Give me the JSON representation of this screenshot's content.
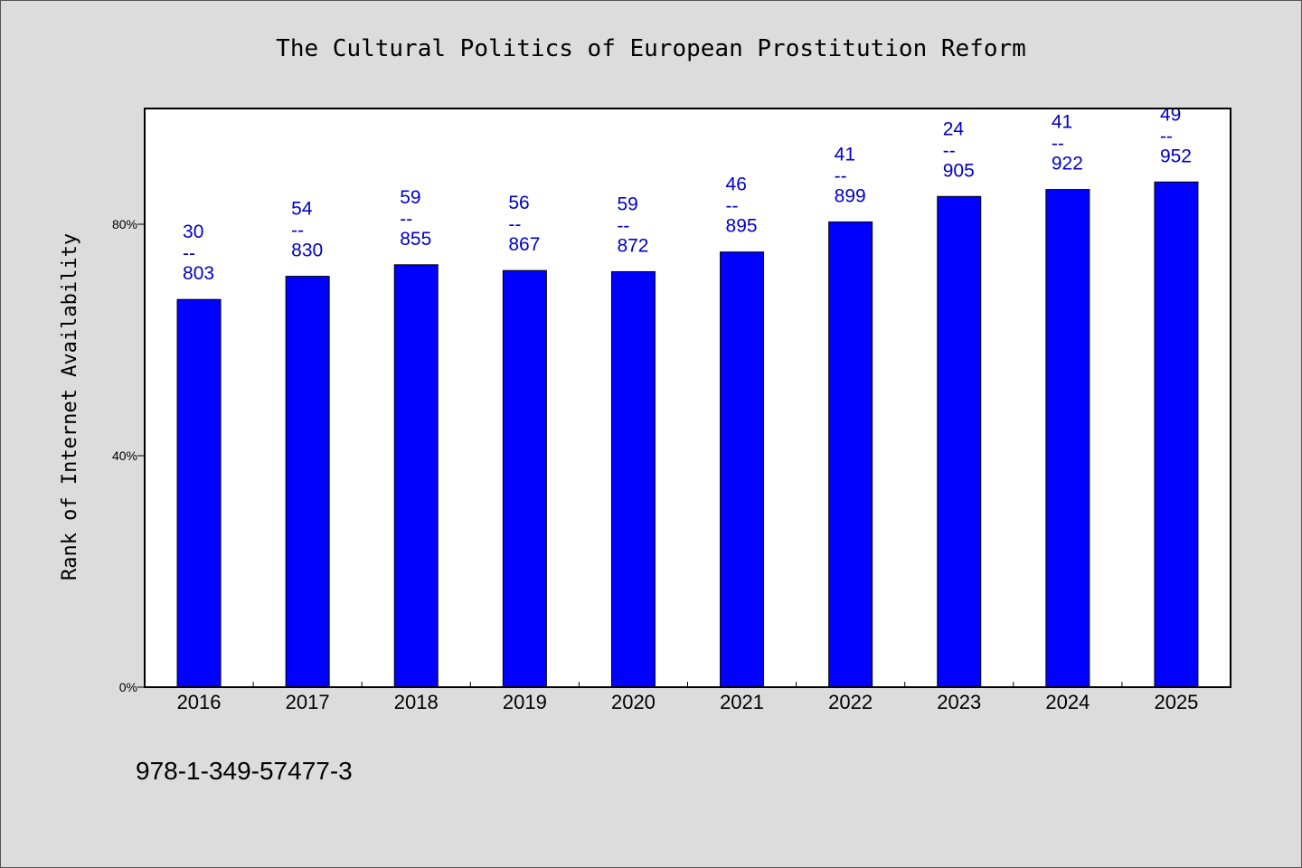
{
  "chart_data": {
    "type": "bar",
    "title": "The Cultural Politics of European Prostitution Reform",
    "ylabel": "Rank of Internet Availability",
    "xlabel": "",
    "categories": [
      "2016",
      "2017",
      "2018",
      "2019",
      "2020",
      "2021",
      "2022",
      "2023",
      "2024",
      "2025"
    ],
    "values": [
      67,
      71,
      73,
      72,
      71.8,
      75.2,
      80.4,
      84.8,
      86,
      87.3
    ],
    "data_labels": [
      {
        "top": "30",
        "sep": "--",
        "bottom": "803"
      },
      {
        "top": "54",
        "sep": "--",
        "bottom": "830"
      },
      {
        "top": "59",
        "sep": "--",
        "bottom": "855"
      },
      {
        "top": "56",
        "sep": "--",
        "bottom": "867"
      },
      {
        "top": "59",
        "sep": "--",
        "bottom": "872"
      },
      {
        "top": "46",
        "sep": "--",
        "bottom": "895"
      },
      {
        "top": "41",
        "sep": "--",
        "bottom": "899"
      },
      {
        "top": "24",
        "sep": "--",
        "bottom": "905"
      },
      {
        "top": "41",
        "sep": "--",
        "bottom": "922"
      },
      {
        "top": "49",
        "sep": "--",
        "bottom": "952"
      }
    ],
    "ylim": [
      0,
      100
    ],
    "yticks": [
      0,
      40,
      80
    ],
    "ytick_labels": [
      "0%",
      "40%",
      "80%"
    ],
    "grid": false,
    "bar_color": "#0000ff",
    "label_color": "#0000c8",
    "background_color": "#dcdcdc",
    "plot_background": "#ffffff"
  },
  "footnote": "978-1-349-57477-3"
}
